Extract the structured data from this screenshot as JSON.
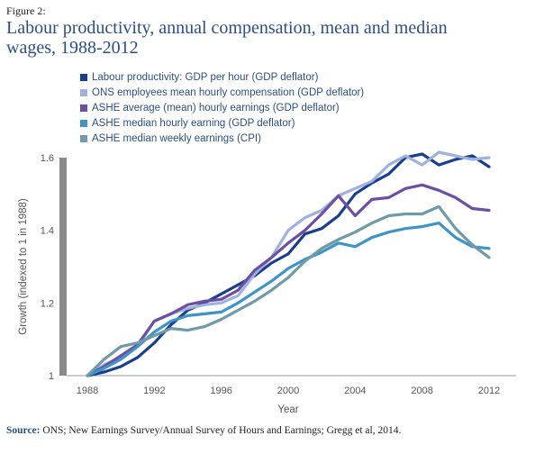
{
  "figure": {
    "label": "Figure 2:",
    "title": "Labour productivity, annual compensation, mean and median wages, 1988-2012"
  },
  "source": {
    "prefix": "Source:",
    "text": " ONS; New Earnings Survey/Annual Survey of Hours and Earnings; Gregg et al, 2014."
  },
  "chart_data": {
    "type": "line",
    "xlabel": "Year",
    "ylabel": "Growth (indexed to 1 in 1988)",
    "xlim": [
      1988,
      2012
    ],
    "ylim": [
      1,
      1.6
    ],
    "xticks": [
      "1988",
      "1992",
      "1996",
      "2000",
      "2004",
      "2008",
      "2012"
    ],
    "yticks": [
      "1",
      "1.2",
      "1.4",
      "1.6"
    ],
    "grid": false,
    "legend_position": "top-left",
    "x": [
      1988,
      1989,
      1990,
      1991,
      1992,
      1993,
      1994,
      1995,
      1996,
      1997,
      1998,
      1999,
      2000,
      2001,
      2002,
      2003,
      2004,
      2005,
      2006,
      2007,
      2008,
      2009,
      2010,
      2011,
      2012
    ],
    "series": [
      {
        "name": "Labour productivity: GDP per hour (GDP deflator)",
        "color": "#1b3f8f",
        "values": [
          1.0,
          1.01,
          1.025,
          1.05,
          1.09,
          1.14,
          1.18,
          1.2,
          1.225,
          1.25,
          1.275,
          1.31,
          1.335,
          1.39,
          1.405,
          1.44,
          1.5,
          1.53,
          1.555,
          1.6,
          1.61,
          1.58,
          1.595,
          1.605,
          1.575
        ]
      },
      {
        "name": "ONS employees mean hourly compensation (GDP deflator)",
        "color": "#9fb1de",
        "values": [
          1.0,
          1.03,
          1.05,
          1.08,
          1.15,
          1.17,
          1.185,
          1.195,
          1.2,
          1.22,
          1.28,
          1.325,
          1.4,
          1.435,
          1.455,
          1.495,
          1.515,
          1.535,
          1.58,
          1.605,
          1.58,
          1.615,
          1.605,
          1.595,
          1.6
        ]
      },
      {
        "name": "ASHE average (mean) hourly earnings (GDP deflator)",
        "color": "#6c4fa3",
        "values": [
          1.0,
          1.025,
          1.055,
          1.085,
          1.15,
          1.17,
          1.195,
          1.205,
          1.21,
          1.235,
          1.29,
          1.325,
          1.365,
          1.4,
          1.445,
          1.495,
          1.44,
          1.485,
          1.49,
          1.515,
          1.525,
          1.51,
          1.49,
          1.46,
          1.455
        ]
      },
      {
        "name": "ASHE median hourly earning (GDP deflator)",
        "color": "#3e94c9",
        "values": [
          1.0,
          1.02,
          1.045,
          1.08,
          1.12,
          1.15,
          1.165,
          1.17,
          1.175,
          1.2,
          1.23,
          1.26,
          1.295,
          1.32,
          1.34,
          1.365,
          1.355,
          1.38,
          1.395,
          1.405,
          1.41,
          1.42,
          1.38,
          1.355,
          1.35
        ]
      },
      {
        "name": "ASHE median weekly earnings (CPI)",
        "color": "#6f9aa7",
        "values": [
          1.0,
          1.045,
          1.08,
          1.09,
          1.11,
          1.13,
          1.125,
          1.135,
          1.155,
          1.18,
          1.205,
          1.235,
          1.27,
          1.315,
          1.35,
          1.375,
          1.395,
          1.42,
          1.44,
          1.445,
          1.445,
          1.465,
          1.405,
          1.36,
          1.325
        ]
      }
    ]
  }
}
